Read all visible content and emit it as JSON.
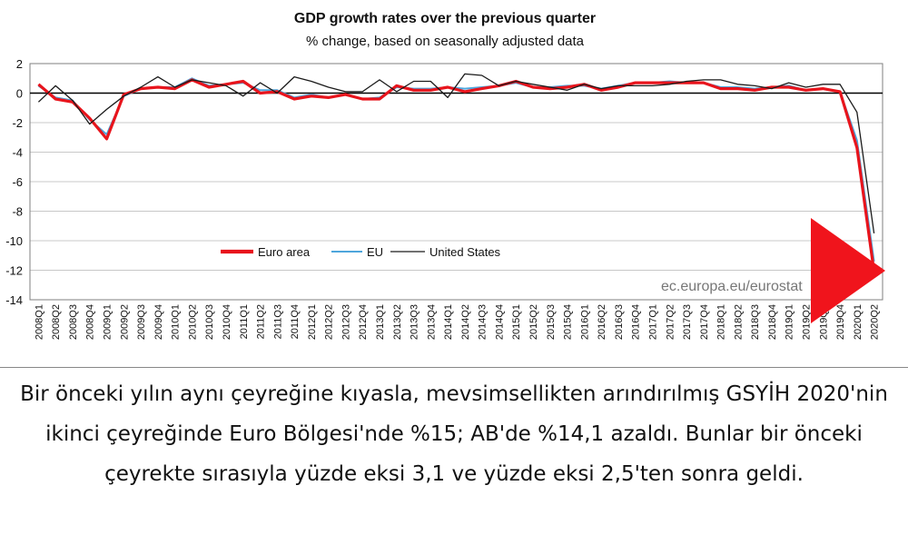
{
  "chart_data": {
    "type": "line",
    "title": "GDP growth rates over the previous quarter",
    "subtitle": "% change, based on seasonally adjusted data",
    "xlabel": "",
    "ylabel": "",
    "ylim": [
      -14,
      2
    ],
    "yticks": [
      2,
      0,
      -2,
      -4,
      -6,
      -8,
      -10,
      -12,
      -14
    ],
    "legend_placement": "middle-left",
    "grid": true,
    "watermark": "ec.europa.eu/eurostat",
    "x": [
      "2008Q1",
      "2008Q2",
      "2008Q3",
      "2008Q4",
      "2009Q1",
      "2009Q2",
      "2009Q3",
      "2009Q4",
      "2010Q1",
      "2010Q2",
      "2010Q3",
      "2010Q4",
      "2011Q1",
      "2011Q2",
      "2011Q3",
      "2011Q4",
      "2012Q1",
      "2012Q2",
      "2012Q3",
      "2012Q4",
      "2013Q1",
      "2013Q2",
      "2013Q3",
      "2013Q4",
      "2014Q1",
      "2014Q2",
      "2014Q3",
      "2014Q4",
      "2015Q1",
      "2015Q2",
      "2015Q3",
      "2015Q4",
      "2016Q1",
      "2016Q2",
      "2016Q3",
      "2016Q4",
      "2017Q1",
      "2017Q2",
      "2017Q3",
      "2017Q4",
      "2018Q1",
      "2018Q2",
      "2018Q3",
      "2018Q4",
      "2019Q1",
      "2019Q2",
      "2019Q3",
      "2019Q4",
      "2020Q1",
      "2020Q2"
    ],
    "series": [
      {
        "name": "Euro area",
        "color": "#e8141c",
        "values": [
          0.6,
          -0.4,
          -0.6,
          -1.7,
          -3.1,
          -0.1,
          0.3,
          0.4,
          0.3,
          0.9,
          0.4,
          0.6,
          0.8,
          0.0,
          0.1,
          -0.4,
          -0.2,
          -0.3,
          -0.1,
          -0.4,
          -0.4,
          0.5,
          0.2,
          0.2,
          0.4,
          0.1,
          0.3,
          0.5,
          0.8,
          0.4,
          0.3,
          0.4,
          0.6,
          0.2,
          0.4,
          0.7,
          0.7,
          0.7,
          0.7,
          0.7,
          0.3,
          0.3,
          0.2,
          0.4,
          0.4,
          0.2,
          0.3,
          0.1,
          -3.7,
          -12.1
        ]
      },
      {
        "name": "EU",
        "color": "#4ea6dc",
        "values": [
          0.5,
          -0.3,
          -0.5,
          -1.8,
          -2.8,
          -0.2,
          0.3,
          0.4,
          0.4,
          1.0,
          0.5,
          0.6,
          0.7,
          0.2,
          0.2,
          -0.3,
          -0.1,
          -0.3,
          -0.1,
          -0.4,
          -0.3,
          0.4,
          0.3,
          0.3,
          0.4,
          0.3,
          0.4,
          0.5,
          0.7,
          0.4,
          0.4,
          0.5,
          0.5,
          0.3,
          0.5,
          0.7,
          0.7,
          0.8,
          0.7,
          0.7,
          0.4,
          0.4,
          0.3,
          0.4,
          0.5,
          0.2,
          0.3,
          0.1,
          -3.2,
          -11.4
        ]
      },
      {
        "name": "United States",
        "color": "#1a1a1a",
        "values": [
          -0.6,
          0.5,
          -0.5,
          -2.1,
          -1.1,
          -0.2,
          0.4,
          1.1,
          0.4,
          0.9,
          0.7,
          0.5,
          -0.2,
          0.7,
          0.0,
          1.1,
          0.8,
          0.4,
          0.1,
          0.1,
          0.9,
          0.1,
          0.8,
          0.8,
          -0.3,
          1.3,
          1.2,
          0.5,
          0.8,
          0.6,
          0.4,
          0.2,
          0.6,
          0.3,
          0.5,
          0.5,
          0.5,
          0.6,
          0.8,
          0.9,
          0.9,
          0.6,
          0.5,
          0.3,
          0.7,
          0.4,
          0.6,
          0.6,
          -1.3,
          -9.5
        ]
      }
    ]
  },
  "caption": {
    "text": "Bir önceki yılın aynı çeyreğine kıyasla, mevsimsellikten arındırılmış GSYİH 2020'nin ikinci çeyreğinde Euro Bölgesi'nde %15; AB'de %14,1 azaldı. Bunlar bir önceki çeyrekte sırasıyla yüzde eksi 3,1 ve yüzde eksi 2,5'ten sonra geldi."
  },
  "colors": {
    "arrow": "#f0141c",
    "grid": "#c8c8c8",
    "plot_border": "#7f7f7f"
  }
}
